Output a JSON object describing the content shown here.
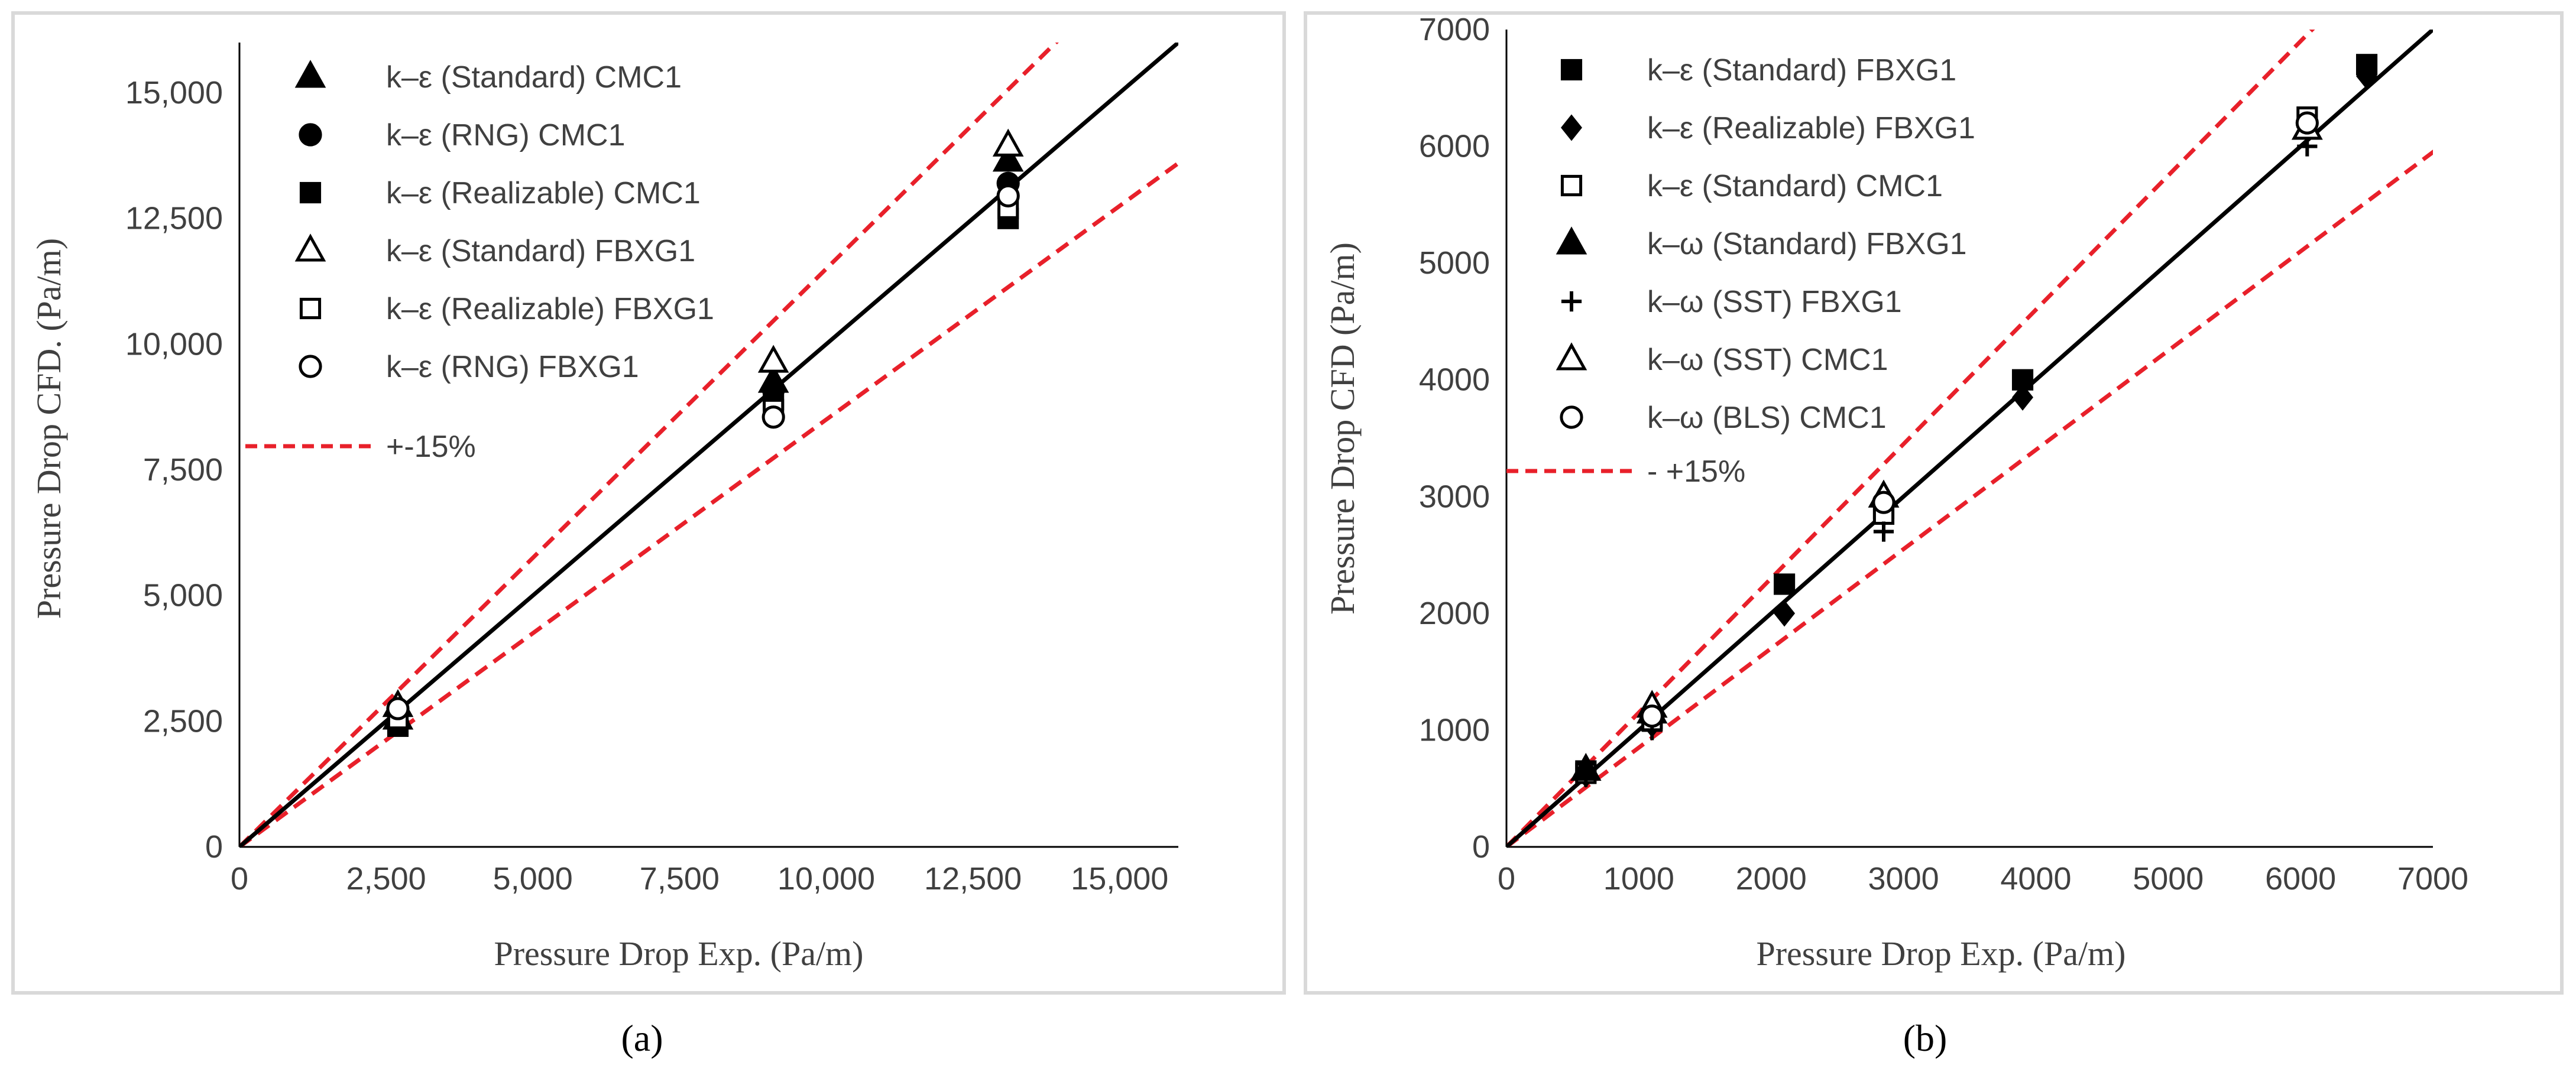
{
  "captions": {
    "a": "(a)",
    "b": "(b)"
  },
  "chart_data": [
    {
      "type": "scatter",
      "id": "a",
      "xlabel": "Pressure Drop Exp.  (Pa/m)",
      "ylabel": "Pressure Drop CFD.  (Pa/m)",
      "xlim": [
        0,
        16000
      ],
      "ylim": [
        0,
        16000
      ],
      "xticks": [
        0,
        2500,
        5000,
        7500,
        10000,
        12500,
        15000
      ],
      "xtick_labels": [
        "0",
        "2,500",
        "5,000",
        "7,500",
        "10,000",
        "12,500",
        "15,000"
      ],
      "yticks": [
        0,
        2500,
        5000,
        7500,
        10000,
        12500,
        15000
      ],
      "ytick_labels": [
        "0",
        "2,500",
        "5,000",
        "7,500",
        "10,000",
        "12,500",
        "15,000"
      ],
      "band_label": "+-15%",
      "band_color": "#e8202a",
      "series": [
        {
          "name": "k–ε (Standard) CMC1",
          "marker": "triangle-filled",
          "points": [
            [
              2700,
              2550
            ],
            [
              9100,
              9250
            ],
            [
              13100,
              13650
            ]
          ]
        },
        {
          "name": "k–ε (RNG) CMC1",
          "marker": "circle-filled",
          "points": [
            [
              2700,
              2450
            ],
            [
              9100,
              9100
            ],
            [
              13100,
              13200
            ]
          ]
        },
        {
          "name": "k–ε (Realizable) CMC1",
          "marker": "square-filled",
          "points": [
            [
              2700,
              2400
            ],
            [
              9100,
              8900
            ],
            [
              13100,
              12500
            ]
          ]
        },
        {
          "name": "k–ε (Standard) FBXG1",
          "marker": "triangle-open",
          "points": [
            [
              2700,
              2800
            ],
            [
              9100,
              9650
            ],
            [
              13100,
              13950
            ]
          ]
        },
        {
          "name": "k–ε (Realizable) FBXG1",
          "marker": "square-open",
          "points": [
            [
              2700,
              2550
            ],
            [
              9100,
              8700
            ],
            [
              13100,
              12700
            ]
          ]
        },
        {
          "name": "k–ε (RNG) FBXG1",
          "marker": "circle-open",
          "points": [
            [
              2700,
              2750
            ],
            [
              9100,
              8550
            ],
            [
              13100,
              12950
            ]
          ]
        }
      ]
    },
    {
      "type": "scatter",
      "id": "b",
      "xlabel": "Pressure Drop Exp.  (Pa/m)",
      "ylabel": "Pressure Drop CFD (Pa/m)",
      "xlim": [
        0,
        7000
      ],
      "ylim": [
        0,
        7000
      ],
      "xticks": [
        0,
        1000,
        2000,
        3000,
        4000,
        5000,
        6000,
        7000
      ],
      "xtick_labels": [
        "0",
        "1000",
        "2000",
        "3000",
        "4000",
        "5000",
        "6000",
        "7000"
      ],
      "yticks": [
        0,
        1000,
        2000,
        3000,
        4000,
        5000,
        6000,
        7000
      ],
      "ytick_labels": [
        "0",
        "1000",
        "2000",
        "3000",
        "4000",
        "5000",
        "6000",
        "7000"
      ],
      "band_label": "- +15%",
      "band_color": "#e8202a",
      "series": [
        {
          "name": "k–ε (Standard) FBXG1",
          "marker": "square-filled",
          "points": [
            [
              600,
              650
            ],
            [
              1100,
              1100
            ],
            [
              2100,
              2250
            ],
            [
              2850,
              2900
            ],
            [
              3900,
              4000
            ],
            [
              6500,
              6700
            ]
          ]
        },
        {
          "name": "k–ε (Realizable) FBXG1",
          "marker": "diamond-filled",
          "points": [
            [
              600,
              620
            ],
            [
              1100,
              1050
            ],
            [
              2100,
              2000
            ],
            [
              2850,
              2850
            ],
            [
              3900,
              3850
            ],
            [
              6500,
              6600
            ]
          ]
        },
        {
          "name": "k–ε (Standard) CMC1",
          "marker": "square-open",
          "points": [
            [
              600,
              630
            ],
            [
              1100,
              1080
            ],
            [
              2850,
              2850
            ],
            [
              6050,
              6250
            ]
          ]
        },
        {
          "name": "k–ω (Standard) FBXG1",
          "marker": "triangle-filled",
          "points": [
            [
              600,
              660
            ],
            [
              1100,
              1150
            ],
            [
              2850,
              3000
            ],
            [
              6050,
              6150
            ]
          ]
        },
        {
          "name": "k–ω (SST) FBXG1",
          "marker": "plus",
          "points": [
            [
              600,
              600
            ],
            [
              1100,
              1000
            ],
            [
              2850,
              2700
            ],
            [
              6050,
              6000
            ]
          ]
        },
        {
          "name": "k–ω (SST) CMC1",
          "marker": "triangle-open",
          "points": [
            [
              1100,
              1200
            ],
            [
              2850,
              3000
            ],
            [
              6050,
              6150
            ]
          ]
        },
        {
          "name": "k–ω (BLS) CMC1",
          "marker": "circle-open",
          "points": [
            [
              1100,
              1120
            ],
            [
              2850,
              2950
            ],
            [
              6050,
              6200
            ]
          ]
        }
      ]
    }
  ]
}
